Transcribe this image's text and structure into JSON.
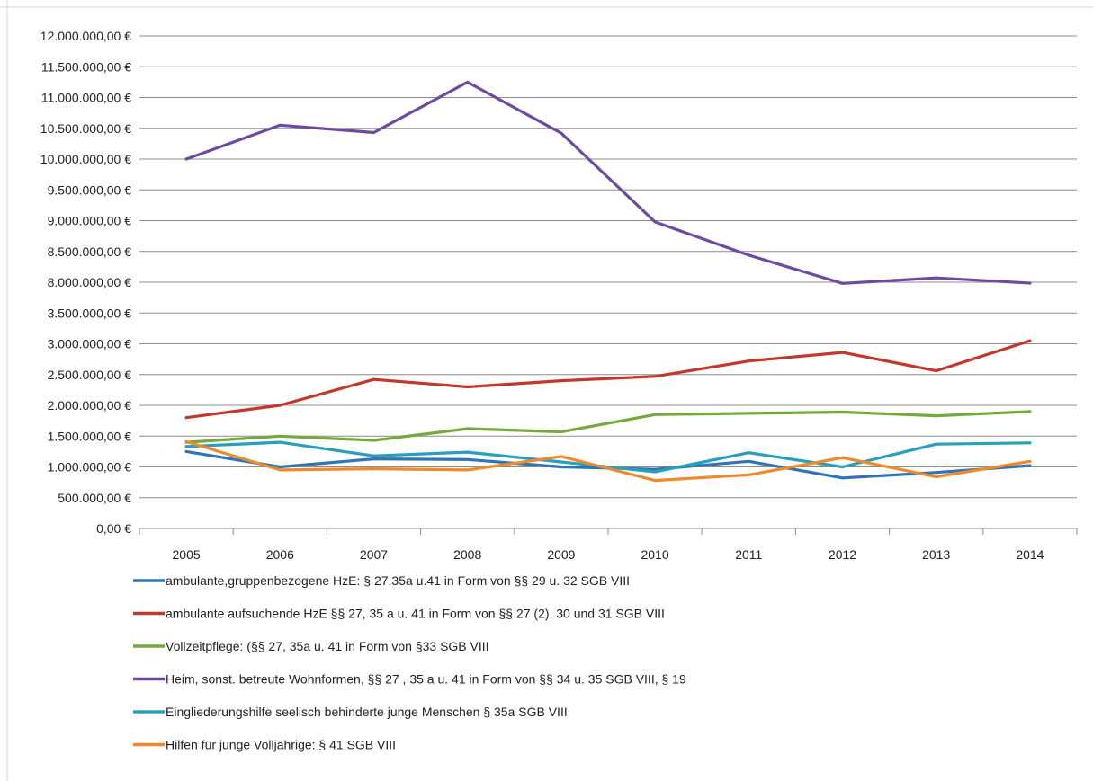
{
  "chart_data": {
    "type": "line",
    "title": "",
    "xlabel": "",
    "ylabel": "",
    "x": [
      "2005",
      "2006",
      "2007",
      "2008",
      "2009",
      "2010",
      "2011",
      "2012",
      "2013",
      "2014"
    ],
    "y_tick_labels": [
      "0,00 €",
      "500.000,00 €",
      "1.000.000,00 €",
      "1.500.000,00 €",
      "2.000.000,00 €",
      "2.500.000,00 €",
      "3.000.000,00 €",
      "3.500.000,00 €",
      "8.000.000,00 €",
      "8.500.000,00 €",
      "9.000.000,00 €",
      "9.500.000,00 €",
      "10.000.000,00 €",
      "10.500.000,00 €",
      "11.000.000,00 €",
      "11.500.000,00 €",
      "12.000.000,00 €"
    ],
    "y_tick_values": [
      0,
      500000,
      1000000,
      1500000,
      2000000,
      2500000,
      3000000,
      3500000,
      8000000,
      8500000,
      9000000,
      9500000,
      10000000,
      10500000,
      11000000,
      11500000,
      12000000
    ],
    "grid": "horizontal",
    "legend_position": "bottom",
    "series": [
      {
        "name": "ambulante,gruppenbezogene HzE: § 27,35a u.41 in Form von §§ 29 u. 32 SGB VIII",
        "color": "#2e75b6",
        "values": [
          1250000,
          1000000,
          1130000,
          1120000,
          1000000,
          960000,
          1090000,
          820000,
          910000,
          1020000
        ]
      },
      {
        "name": "ambulante aufsuchende  HzE §§ 27, 35 a u.  41 in Form von §§ 27 (2), 30 und 31 SGB VIII",
        "color": "#c0392b",
        "values": [
          1800000,
          2000000,
          2420000,
          2300000,
          2400000,
          2470000,
          2720000,
          2860000,
          2560000,
          3050000
        ]
      },
      {
        "name": "Vollzeitpflege: (§§ 27, 35a u. 41 in Form von §33 SGB VIII",
        "color": "#77a83b",
        "values": [
          1400000,
          1500000,
          1430000,
          1620000,
          1570000,
          1850000,
          1870000,
          1890000,
          1830000,
          1900000
        ]
      },
      {
        "name": "Heim, sonst. betreute Wohnformen, §§ 27 , 35 a u. 41 in Form von §§ 34 u. 35 SGB VIII, § 19",
        "color": "#6b4ba0",
        "values": [
          10000000,
          10550000,
          10430000,
          11250000,
          10420000,
          8980000,
          8440000,
          7830000,
          8070000,
          7870000
        ]
      },
      {
        "name": "Eingliederungshilfe seelisch behinderte junge Menschen § 35a SGB VIII",
        "color": "#2a9fbd",
        "values": [
          1330000,
          1400000,
          1180000,
          1240000,
          1080000,
          920000,
          1230000,
          1000000,
          1370000,
          1390000
        ]
      },
      {
        "name": "Hilfen für junge Volljährige: § 41 SGB VIII",
        "color": "#ee8a2b",
        "values": [
          1410000,
          950000,
          970000,
          950000,
          1170000,
          780000,
          870000,
          1150000,
          840000,
          1090000
        ]
      }
    ]
  }
}
